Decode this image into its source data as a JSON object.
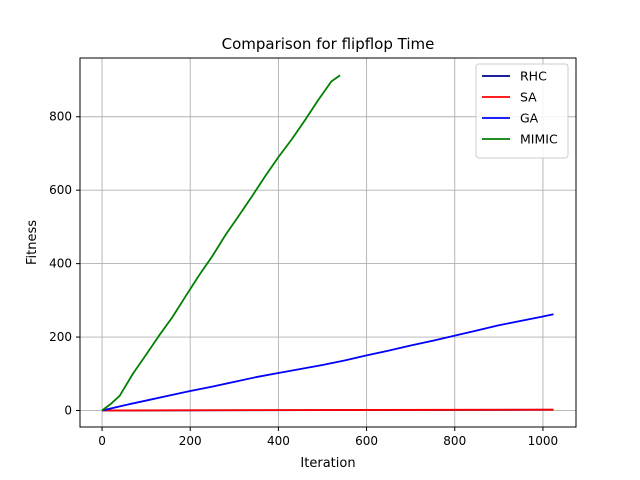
{
  "chart_data": {
    "type": "line",
    "title": "Comparison for flipflop Time",
    "xlabel": "Iteration",
    "ylabel": "Fitness",
    "xlim": [
      -50,
      1075
    ],
    "ylim": [
      -45,
      960
    ],
    "xticks": [
      0,
      200,
      400,
      600,
      800,
      1000
    ],
    "yticks": [
      0,
      200,
      400,
      600,
      800
    ],
    "grid": true,
    "legend_position": "top-right",
    "series": [
      {
        "name": "RHC",
        "color": "#00008b",
        "x": [
          0,
          1024
        ],
        "y": [
          0,
          2
        ]
      },
      {
        "name": "SA",
        "color": "#ff0000",
        "x": [
          0,
          200,
          400,
          600,
          800,
          1024
        ],
        "y": [
          0,
          0.6,
          1.0,
          1.4,
          1.8,
          2.2
        ]
      },
      {
        "name": "GA",
        "color": "#0000ff",
        "x": [
          0,
          50,
          100,
          150,
          200,
          250,
          300,
          350,
          400,
          450,
          500,
          550,
          600,
          650,
          700,
          750,
          800,
          850,
          900,
          950,
          1000,
          1024
        ],
        "y": [
          0,
          14,
          27,
          40,
          53,
          65,
          78,
          91,
          102,
          113,
          124,
          136,
          150,
          163,
          177,
          190,
          204,
          218,
          232,
          244,
          256,
          262
        ]
      },
      {
        "name": "MIMIC",
        "color": "#008000",
        "x": [
          0,
          20,
          40,
          70,
          100,
          130,
          160,
          190,
          220,
          250,
          280,
          310,
          340,
          370,
          400,
          430,
          460,
          490,
          520,
          540
        ],
        "y": [
          0,
          18,
          40,
          100,
          152,
          205,
          255,
          312,
          368,
          420,
          478,
          530,
          583,
          638,
          690,
          738,
          790,
          845,
          896,
          913
        ]
      }
    ]
  }
}
